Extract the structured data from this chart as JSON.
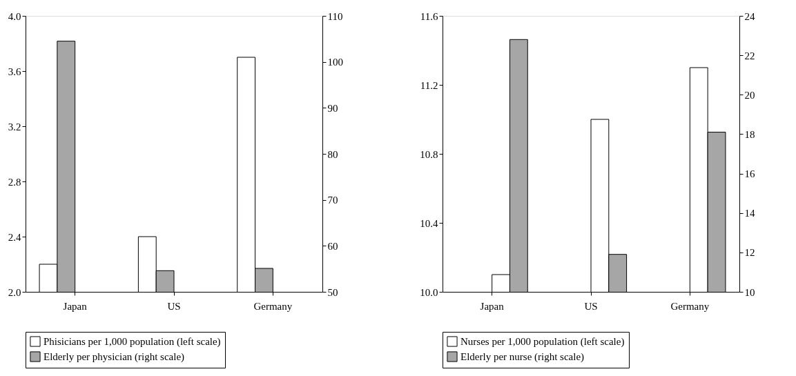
{
  "chart_data": [
    {
      "type": "bar",
      "categories": [
        "Japan",
        "US",
        "Germany"
      ],
      "legend": "bottom",
      "grid": false,
      "series": [
        {
          "name": "Phisicians per 1,000 population (left scale)",
          "color": "#ffffff",
          "values": [
            2.2,
            2.4,
            3.7
          ]
        },
        {
          "name": "Elderly per physician (right scale)",
          "color": "#a6a6a6",
          "axis": "y2",
          "values": [
            104.5,
            54.6,
            55.1
          ]
        }
      ],
      "ylim": [
        2.0,
        4.0
      ],
      "yticks": [
        {
          "value": 2.0,
          "label": "2.0"
        },
        2.4,
        2.8,
        3.2,
        3.6,
        {
          "value": 4.0,
          "label": "4.0"
        }
      ],
      "y2lim": [
        50,
        110
      ],
      "y2ticks": [
        50,
        60,
        70,
        80,
        90,
        100,
        110
      ]
    },
    {
      "type": "bar",
      "categories": [
        "Japan",
        "US",
        "Germany"
      ],
      "legend": "bottom",
      "grid": false,
      "series": [
        {
          "name": "Nurses per 1,000 population (left scale)",
          "color": "#ffffff",
          "values": [
            10.1,
            11.0,
            11.3
          ]
        },
        {
          "name": "Elderly per nurse (right scale)",
          "color": "#a6a6a6",
          "axis": "y2",
          "values": [
            22.8,
            11.9,
            18.1
          ]
        }
      ],
      "ylim": [
        10.0,
        11.6
      ],
      "yticks": [
        {
          "value": 10.0,
          "label": "10.0"
        },
        10.4,
        10.8,
        11.2,
        11.6
      ],
      "y2lim": [
        10,
        24
      ],
      "y2ticks": [
        10,
        12,
        14,
        16,
        18,
        20,
        22,
        24
      ]
    }
  ]
}
